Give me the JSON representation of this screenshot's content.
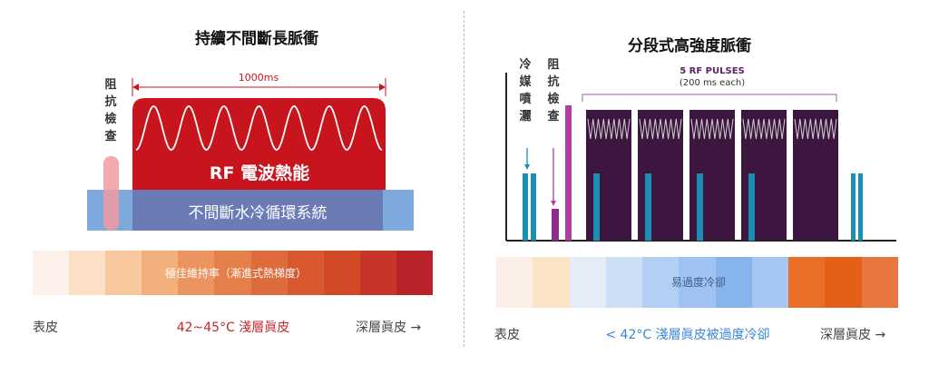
{
  "left": {
    "title": "持續不間斷長脈衝",
    "impedance_label": "阻抗檢查",
    "duration_label": "1000ms",
    "rf_label": "RF 電波熱能",
    "cooling_label": "不間斷水冷循環系統",
    "gradient_label": "極佳維持率（漸進式熱梯度）",
    "gradient_colors": [
      "#fcf0ea",
      "#fbe0c6",
      "#f8c99f",
      "#f4b07c",
      "#eb9460",
      "#e57f4a",
      "#dd6b3c",
      "#d8592f",
      "#d24a25",
      "#c7342a",
      "#ba222a"
    ],
    "skin_surface": "表皮",
    "caption": "42~45°C 淺層眞皮",
    "deep_label": "深層眞皮 →",
    "caption_color": "#c8262c"
  },
  "right": {
    "title": "分段式高強度脈衝",
    "cryogen_label": "冷媒噴灑",
    "impedance_label": "阻抗檢查",
    "pulses_label": "5 RF PULSES",
    "pulses_sub": "(200 ms each)",
    "gradient_label": "易過度冷卻",
    "gradient_colors": [
      "#fcefe7",
      "#fbe3c5",
      "#e3ecf7",
      "#cddff6",
      "#b3cff4",
      "#9ec2f1",
      "#88b4ee",
      "#a5c8f3",
      "#e96f27",
      "#e65f16",
      "#e7773f"
    ],
    "skin_surface": "表皮",
    "caption": "< 42°C 淺層眞皮被過度冷卻",
    "deep_label": "深層眞皮 →",
    "caption_color": "#3a86d6"
  },
  "colors": {
    "rf_red": "#c8141c",
    "cooling_blue": "#7ea9dd",
    "cooling_mid": "#6a7bb5",
    "pulse_purple": "#3d1640",
    "teal": "#1a8fb3",
    "magenta": "#b23da3"
  }
}
